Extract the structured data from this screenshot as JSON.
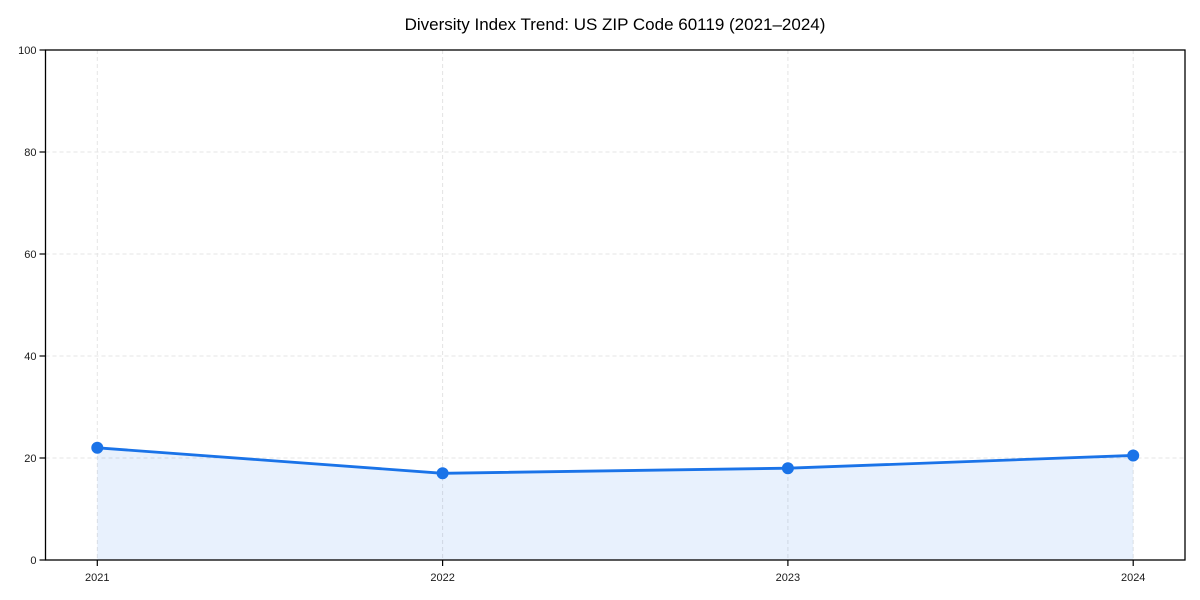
{
  "chart_data": {
    "type": "area",
    "title": "Diversity Index Trend: US ZIP Code 60119 (2021–2024)",
    "series_name": "Diversity Index",
    "x": [
      2021,
      2022,
      2023,
      2024
    ],
    "values": [
      22,
      17,
      18,
      20.5
    ],
    "xtick_labels": [
      "2021",
      "2022",
      "2023",
      "2024"
    ],
    "ytick_labels": [
      "0",
      "20",
      "40",
      "60",
      "80",
      "100"
    ],
    "yticks": [
      0,
      20,
      40,
      60,
      80,
      100
    ],
    "xlim": [
      2020.85,
      2024.15
    ],
    "ylim": [
      0,
      100
    ],
    "xlabel": "",
    "ylabel": "",
    "grid": "dashed",
    "legend": "none",
    "colors": {
      "line": "#1a73e8",
      "marker": "#1a73e8",
      "fill": "rgba(26,115,232,0.10)",
      "grid": "#e4e4e4",
      "spine": "#000000",
      "tick_label": "#1a1a1a",
      "background": "#ffffff"
    }
  }
}
